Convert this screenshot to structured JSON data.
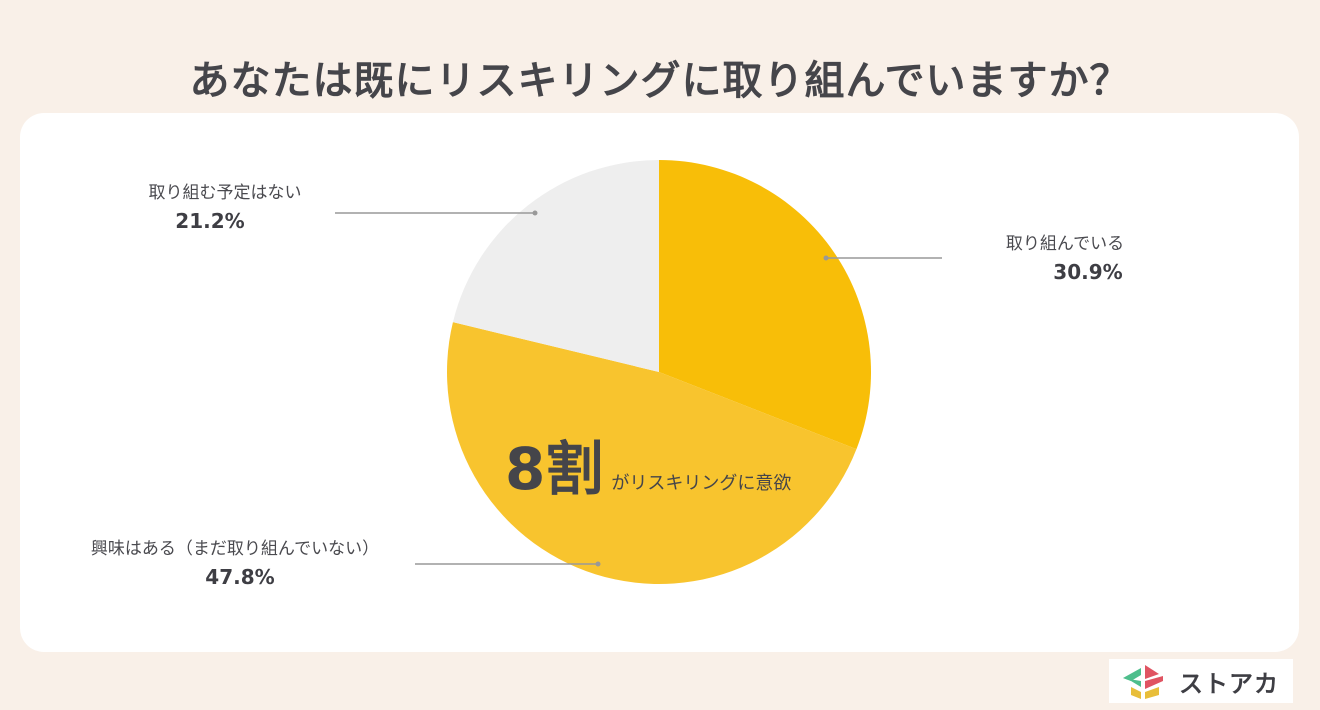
{
  "title": "あなたは既にリスキリングに取り組んでいますか？",
  "colors": {
    "background": "#F9F0E8",
    "card": "#FFFFFF",
    "slice_doing": "#F8BE08",
    "slice_interested": "#F8C42E",
    "slice_no_plan": "#EEEEEE",
    "leader_line": "#999999",
    "text": "#45454A"
  },
  "callout": {
    "big": "8割",
    "small": "がリスキリングに意欲"
  },
  "labels": {
    "doing": {
      "name": "取り組んでいる",
      "pct": "30.9%"
    },
    "interested": {
      "name": "興味はある（まだ取り組んでいない）",
      "pct": "47.8%"
    },
    "no_plan": {
      "name": "取り組む予定はない",
      "pct": "21.2%"
    }
  },
  "logo": {
    "brand": "ストアカ"
  },
  "chart_data": {
    "type": "pie",
    "title": "あなたは既にリスキリングに取り組んでいますか？",
    "categories": [
      "取り組んでいる",
      "興味はある（まだ取り組んでいない）",
      "取り組む予定はない"
    ],
    "values": [
      30.9,
      47.8,
      21.2
    ],
    "unit": "%",
    "start_angle": "12 o'clock, clockwise",
    "colors": [
      "#F8BE08",
      "#F8C42E",
      "#EEEEEE"
    ],
    "annotations": [
      "8割がリスキリングに意欲"
    ],
    "legend": "none (callout labels with leader lines)"
  }
}
